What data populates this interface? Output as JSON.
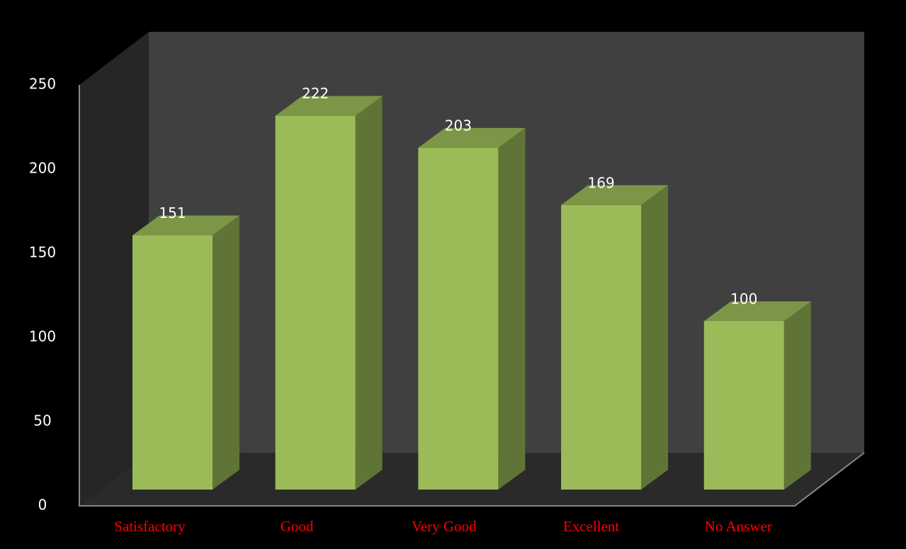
{
  "chart_data": {
    "type": "bar3d",
    "categories": [
      "Satisfactory",
      "Good",
      "Very Good",
      "Excellent",
      "No Answer"
    ],
    "values": [
      151,
      222,
      203,
      169,
      100
    ],
    "color": "#9bbb59",
    "category_color": "#ff0000",
    "ylim": [
      0,
      250
    ],
    "yticks": [
      0,
      50,
      100,
      150,
      200,
      250
    ]
  }
}
